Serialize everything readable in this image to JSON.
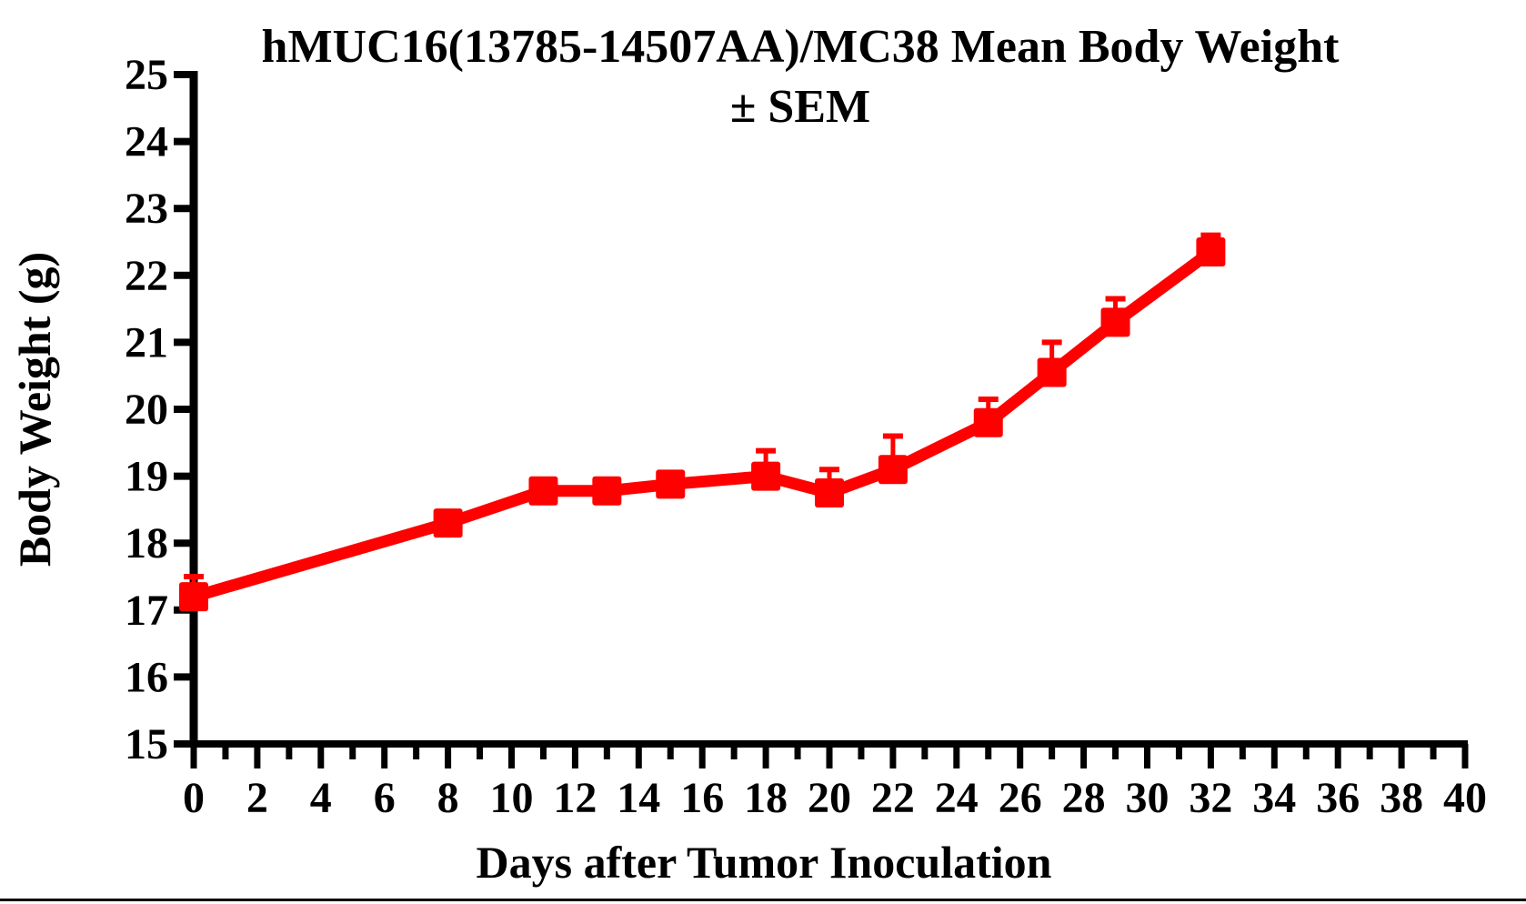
{
  "figure": {
    "title_line1": "hMUC16(13785-14507AA)/MC38 Mean Body Weight",
    "title_line2": "± SEM",
    "x_axis_title": "Days after Tumor Inoculation",
    "y_axis_title": "Body Weight (g)"
  },
  "chart_data": {
    "type": "line",
    "title": "hMUC16(13785-14507AA)/MC38 Mean Body Weight ± SEM",
    "xlabel": "Days after Tumor Inoculation",
    "ylabel": "Body Weight (g)",
    "xlim": [
      0,
      40
    ],
    "ylim": [
      15,
      25
    ],
    "x_ticks_major": [
      0,
      2,
      4,
      6,
      8,
      10,
      12,
      14,
      16,
      18,
      20,
      22,
      24,
      26,
      28,
      30,
      32,
      34,
      36,
      38,
      40
    ],
    "x_ticks_minor": [
      1,
      3,
      5,
      7,
      9,
      11,
      13,
      15,
      17,
      19,
      21,
      23,
      25,
      27,
      29,
      31,
      33,
      35,
      37,
      39
    ],
    "y_ticks": [
      15,
      16,
      17,
      18,
      19,
      20,
      21,
      22,
      23,
      24,
      25
    ],
    "grid": false,
    "legend": "none",
    "series": [
      {
        "name": "hMUC16(13785-14507AA)/MC38",
        "color": "#FF0000",
        "marker": "square",
        "error_bars": "SEM, upper only",
        "x_days": [
          0,
          8,
          11,
          13,
          15,
          18,
          20,
          22,
          25,
          27,
          29,
          32
        ],
        "mean_body_weight_g": [
          17.2,
          18.3,
          18.78,
          18.78,
          18.88,
          19.0,
          18.75,
          19.1,
          19.8,
          20.55,
          21.3,
          22.35
        ],
        "sem_g": [
          0.3,
          0.1,
          0.1,
          0.1,
          0.1,
          0.38,
          0.35,
          0.5,
          0.35,
          0.45,
          0.35,
          0.25
        ]
      }
    ]
  }
}
